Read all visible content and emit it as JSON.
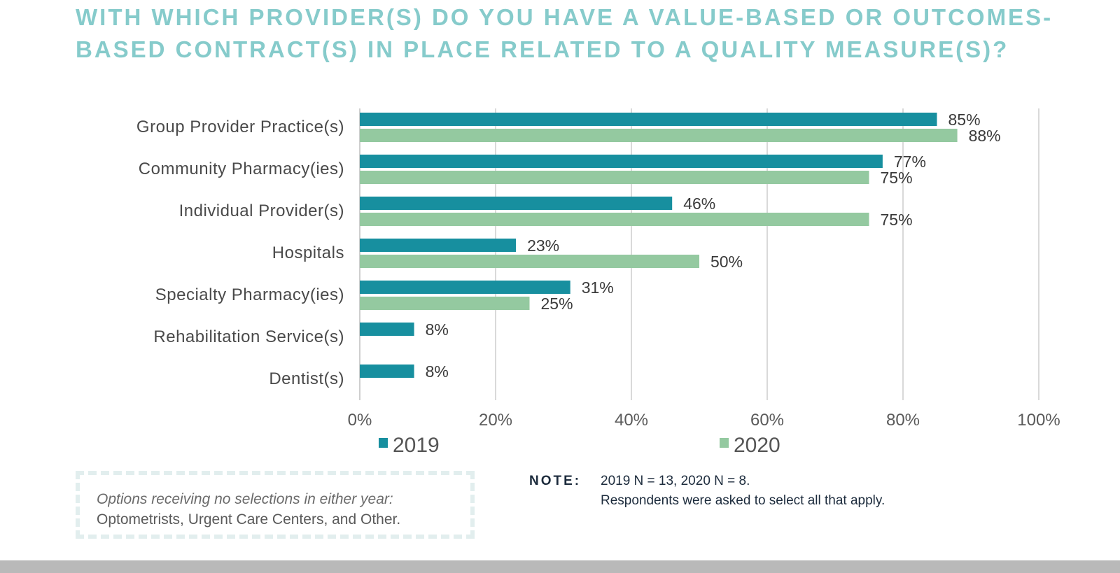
{
  "title": "WITH WHICH PROVIDER(S) DO YOU HAVE A VALUE-BASED OR OUTCOMES-BASED CONTRACT(S) IN PLACE RELATED TO A QUALITY MEASURE(S)?",
  "colors": {
    "title": "#86cbcb",
    "series_2019": "#178f9f",
    "series_2020": "#94c9a0",
    "grid": "#d9d9d9"
  },
  "chart_data": {
    "type": "bar",
    "orientation": "horizontal",
    "title": "WITH WHICH PROVIDER(S) DO YOU HAVE A VALUE-BASED OR OUTCOMES-BASED CONTRACT(S) IN PLACE RELATED TO A QUALITY MEASURE(S)?",
    "categories": [
      "Group Provider Practice(s)",
      "Community Pharmacy(ies)",
      "Individual Provider(s)",
      "Hospitals",
      "Specialty Pharmacy(ies)",
      "Rehabilitation Service(s)",
      "Dentist(s)"
    ],
    "series": [
      {
        "name": "2019",
        "color": "#178f9f",
        "values": [
          85,
          77,
          46,
          23,
          31,
          8,
          8
        ],
        "labels": [
          "85%",
          "77%",
          "46%",
          "23%",
          "31%",
          "8%",
          "8%"
        ]
      },
      {
        "name": "2020",
        "color": "#94c9a0",
        "values": [
          88,
          75,
          75,
          50,
          25,
          null,
          null
        ],
        "labels": [
          "88%",
          "75%",
          "75%",
          "50%",
          "25%",
          null,
          null
        ]
      }
    ],
    "xlim": [
      0,
      100
    ],
    "xticks": [
      "0%",
      "20%",
      "40%",
      "60%",
      "80%",
      "100%"
    ],
    "xtick_values": [
      0,
      20,
      40,
      60,
      80,
      100
    ],
    "grid": true,
    "legend": {
      "position": "bottom",
      "entries": [
        "2019",
        "2020"
      ]
    },
    "xlabel": "",
    "ylabel": ""
  },
  "callout": {
    "italic_text": "Options receiving no selections in either year:",
    "plain_text": "Optometrists, Urgent Care Centers, and Other."
  },
  "note": {
    "key": "NOTE:",
    "line1": "2019 N = 13, 2020 N = 8.",
    "line2": "Respondents were asked to select all that apply."
  }
}
